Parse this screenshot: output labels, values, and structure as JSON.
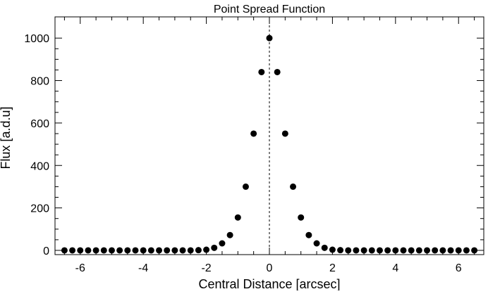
{
  "chart_data": {
    "type": "scatter",
    "title": "Point Spread Function",
    "xlabel": "Central Distance [arcsec]",
    "ylabel": "Flux [a.d.u]",
    "xlim": [
      -6.8,
      6.8
    ],
    "ylim": [
      -20,
      1100
    ],
    "xticks": [
      -6,
      -4,
      -2,
      0,
      2,
      4,
      6
    ],
    "xtick_labels": [
      "-6",
      "-4",
      "-2",
      "0",
      "2",
      "4",
      "6"
    ],
    "yticks": [
      0,
      200,
      400,
      600,
      800,
      1000
    ],
    "ytick_labels": [
      "0",
      "200",
      "400",
      "600",
      "800",
      "1000"
    ],
    "grid": false,
    "legend": "none",
    "marker_color": "#000000",
    "reference_line": {
      "x": 0,
      "style": "dashed"
    },
    "series": [
      {
        "x": [
          -6.5,
          -6.25,
          -6.0,
          -5.75,
          -5.5,
          -5.25,
          -5.0,
          -4.75,
          -4.5,
          -4.25,
          -4.0,
          -3.75,
          -3.5,
          -3.25,
          -3.0,
          -2.75,
          -2.5,
          -2.25,
          -2.0,
          -1.75,
          -1.5,
          -1.25,
          -1.0,
          -0.75,
          -0.5,
          -0.25,
          0.0,
          0.25,
          0.5,
          0.75,
          1.0,
          1.25,
          1.5,
          1.75,
          2.0,
          2.25,
          2.5,
          2.75,
          3.0,
          3.25,
          3.5,
          3.75,
          4.0,
          4.25,
          4.5,
          4.75,
          5.0,
          5.25,
          5.5,
          5.75,
          6.0,
          6.25,
          6.5
        ],
        "y": [
          0,
          0,
          0,
          0,
          0,
          0,
          0,
          0,
          0,
          0,
          0,
          0,
          0,
          0,
          0,
          0,
          0,
          1,
          3,
          12,
          33,
          72,
          155,
          300,
          550,
          840,
          1000,
          840,
          550,
          300,
          155,
          72,
          33,
          12,
          3,
          1,
          0,
          0,
          0,
          0,
          0,
          0,
          0,
          0,
          0,
          0,
          0,
          0,
          0,
          0,
          0,
          0,
          0
        ]
      }
    ]
  }
}
